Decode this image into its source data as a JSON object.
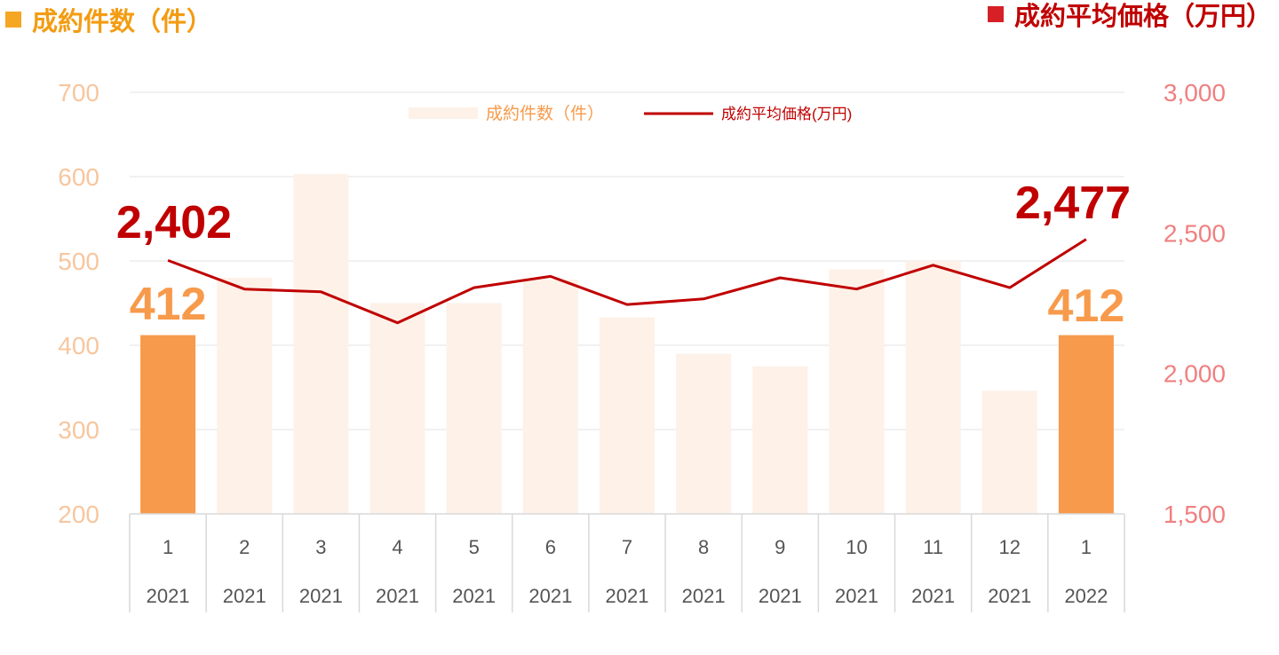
{
  "titles": {
    "left": "成約件数（件）",
    "right": "成約平均価格（万円）",
    "left_color": "#f5a623",
    "right_color": "#d61f26"
  },
  "legend": {
    "bar_label": "成約件数（件）",
    "line_label": "成約平均価格(万円)",
    "placement": "top-center"
  },
  "annotations": {
    "first_bar": "412",
    "last_bar": "412",
    "first_line": "2,402",
    "last_line": "2,477"
  },
  "colors": {
    "bar_faded": "#fdf1e8",
    "bar_highlight": "#f79a4b",
    "line": "#c00000",
    "left_axis": "#f7c69e",
    "right_axis": "#f08080",
    "bar_label": "#f79a4b",
    "line_label": "#c00000",
    "grid": "#e3e3e3",
    "cat_text": "#555555"
  },
  "chart_data": {
    "type": "bar+line",
    "categories": [
      {
        "month": "1",
        "year": "2021"
      },
      {
        "month": "2",
        "year": "2021"
      },
      {
        "month": "3",
        "year": "2021"
      },
      {
        "month": "4",
        "year": "2021"
      },
      {
        "month": "5",
        "year": "2021"
      },
      {
        "month": "6",
        "year": "2021"
      },
      {
        "month": "7",
        "year": "2021"
      },
      {
        "month": "8",
        "year": "2021"
      },
      {
        "month": "9",
        "year": "2021"
      },
      {
        "month": "10",
        "year": "2021"
      },
      {
        "month": "11",
        "year": "2021"
      },
      {
        "month": "12",
        "year": "2021"
      },
      {
        "month": "1",
        "year": "2022"
      }
    ],
    "series": [
      {
        "name": "成約件数（件）",
        "type": "bar",
        "axis": "left",
        "values": [
          412,
          480,
          603,
          450,
          450,
          478,
          433,
          390,
          375,
          490,
          500,
          346,
          412
        ],
        "highlighted": [
          0,
          12
        ]
      },
      {
        "name": "成約平均価格(万円)",
        "type": "line",
        "axis": "right",
        "values": [
          2402,
          2300,
          2290,
          2180,
          2305,
          2345,
          2245,
          2265,
          2340,
          2300,
          2385,
          2305,
          2477
        ]
      }
    ],
    "y_left": {
      "min": 200,
      "max": 700,
      "ticks": [
        200,
        300,
        400,
        500,
        600,
        700
      ],
      "tick_labels": [
        "200",
        "300",
        "400",
        "500",
        "600",
        "700"
      ]
    },
    "y_right": {
      "min": 1500,
      "max": 3000,
      "ticks": [
        1500,
        2000,
        2500,
        3000
      ],
      "tick_labels": [
        "1,500",
        "2,000",
        "2,500",
        "3,000"
      ]
    },
    "grid": true
  }
}
